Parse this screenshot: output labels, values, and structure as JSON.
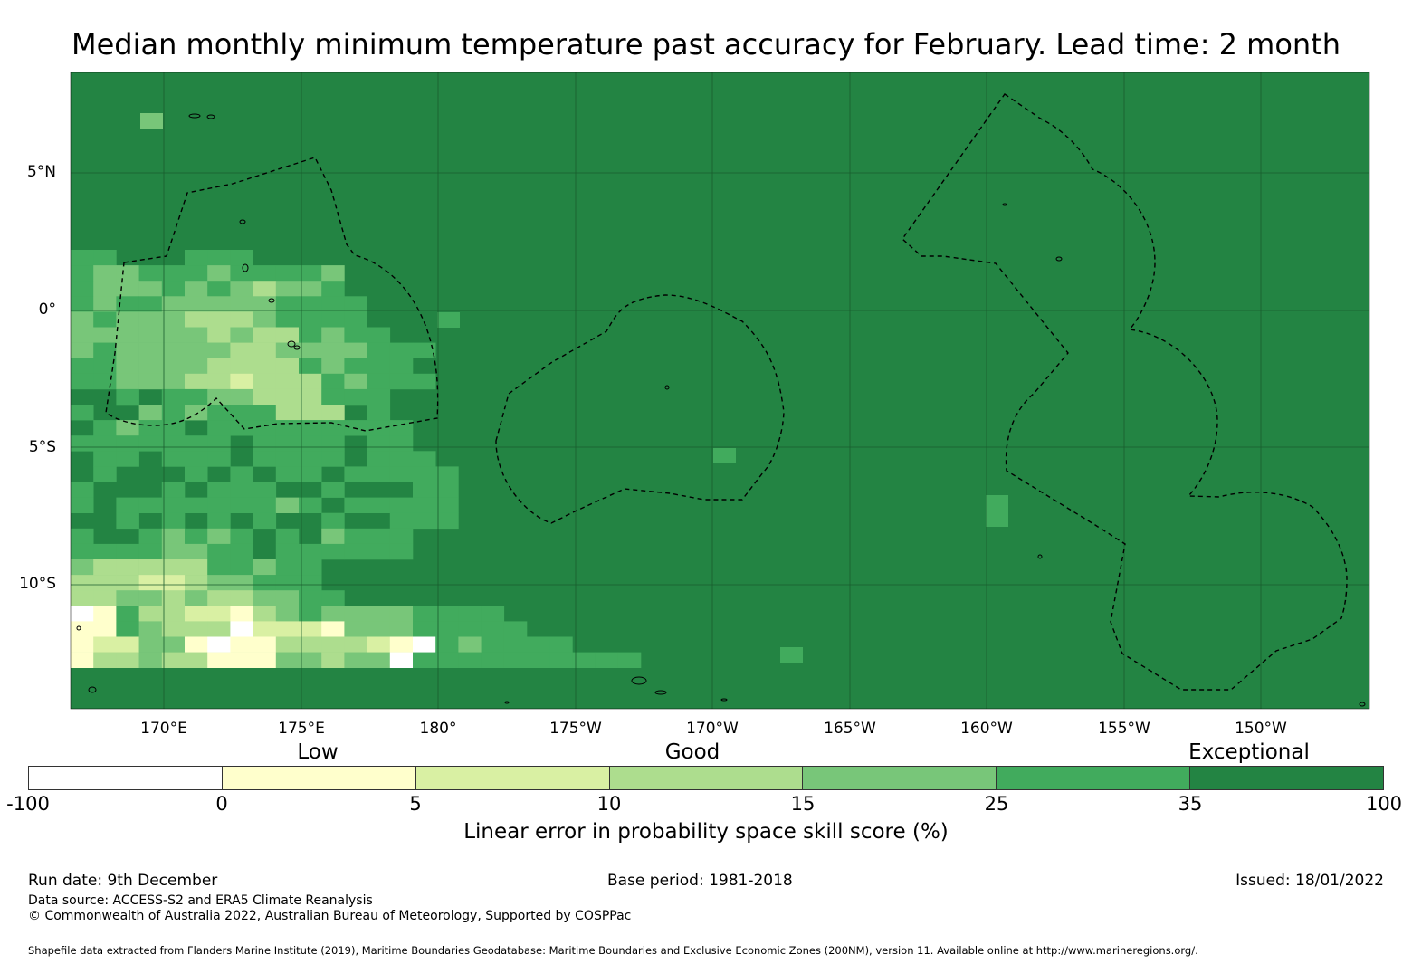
{
  "title": "Median monthly minimum temperature past accuracy for February. Lead time: 2 month",
  "map": {
    "lat_labels": [
      "5°N",
      "0°",
      "5°S",
      "10°S"
    ],
    "lon_labels": [
      "170°E",
      "175°E",
      "180°",
      "175°W",
      "170°W",
      "165°W",
      "160°W",
      "155°W",
      "150°W"
    ],
    "lon_range_deg_east": [
      166.6,
      214.0
    ],
    "lat_range_deg": [
      -14.6,
      8.6
    ],
    "grid_cell_deg": 0.83,
    "base_category_index": 6
  },
  "legend": {
    "category_labels": [
      "Low",
      "Good",
      "Exceptional"
    ],
    "ticks": [
      "-100",
      "0",
      "5",
      "10",
      "15",
      "25",
      "35",
      "100"
    ],
    "colors": [
      "#ffffff",
      "#ffffcc",
      "#d9f0a3",
      "#addd8e",
      "#78c679",
      "#41ab5d",
      "#238443"
    ],
    "title": "Linear error in probability space skill score (%)"
  },
  "footer": {
    "run_date": "Run date: 9th December",
    "base_period": "Base period: 1981-2018",
    "issued": "Issued: 18/01/2022",
    "data_source": "Data source: ACCESS-S2 and ERA5 Climate Reanalysis",
    "copyright": "© Commonwealth of Australia 2022, Australian Bureau of Meteorology, Supported by COSPPac",
    "shapefile": "Shapefile data extracted from Flanders Marine Institute (2019), Maritime Boundaries Geodatabase: Maritime Boundaries and Exclusive Economic Zones (200NM), version 11. Available online at http://www.marineregions.org/."
  }
}
